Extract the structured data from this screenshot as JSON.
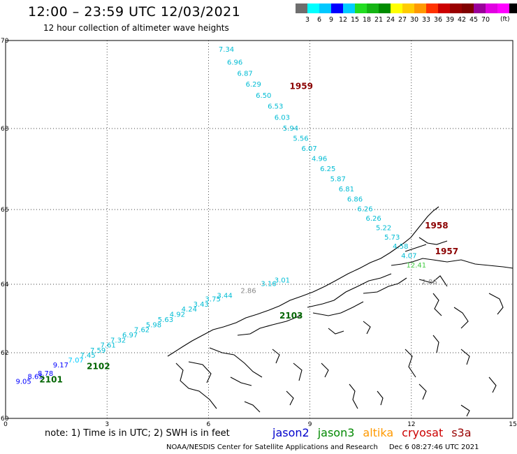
{
  "header": {
    "title": "12:00 – 23:59 UTC 12/03/2021",
    "subtitle": "12 hour collection of altimeter wave heights"
  },
  "legend": {
    "colors": [
      "#6e6e6e",
      "#00ffff",
      "#00c8ff",
      "#0000ff",
      "#00ccff",
      "#22dd22",
      "#14b414",
      "#008c00",
      "#ffff00",
      "#ffcc00",
      "#ff9900",
      "#ff3300",
      "#cc0000",
      "#990000",
      "#800000",
      "#9a009a",
      "#e100e1",
      "#ff00ff",
      "#000000"
    ],
    "ticks": [
      "3",
      "6",
      "9",
      "12",
      "15",
      "18",
      "21",
      "24",
      "27",
      "30",
      "33",
      "36",
      "39",
      "42",
      "45",
      "70"
    ],
    "unit": "(ft)"
  },
  "axes": {
    "x_ticks": [
      "0",
      "3",
      "6",
      "9",
      "12",
      "15"
    ],
    "y_ticks": [
      "60",
      "62",
      "64",
      "66",
      "68",
      "70"
    ],
    "xlim": [
      0,
      15
    ],
    "ylim": [
      60,
      70
    ]
  },
  "passes": [
    {
      "satellite": "cryosat",
      "time": "1959",
      "color": "#8b0000",
      "lon": 8.4,
      "lat": 68.9
    },
    {
      "satellite": "cryosat",
      "time": "1958",
      "color": "#8b0000",
      "lon": 12.4,
      "lat": 65.5
    },
    {
      "satellite": "cryosat",
      "time": "1957",
      "color": "#8b0000",
      "lon": 12.7,
      "lat": 64.8
    },
    {
      "satellite": "jason3",
      "time": "2102",
      "color": "#006400",
      "lon": 2.4,
      "lat": 61.5
    },
    {
      "satellite": "jason3",
      "time": "2101",
      "color": "#006400",
      "lon": 1.0,
      "lat": 61.1
    },
    {
      "satellite": "jason3",
      "time": "2103",
      "color": "#006400",
      "lon": 8.1,
      "lat": 63.0
    }
  ],
  "swh_points": [
    {
      "v": "7.34",
      "lon": 6.3,
      "lat": 69.75,
      "color": "#00bcd4"
    },
    {
      "v": "6.96",
      "lon": 6.55,
      "lat": 69.45,
      "color": "#00bcd4"
    },
    {
      "v": "6.87",
      "lon": 6.85,
      "lat": 69.2,
      "color": "#00bcd4"
    },
    {
      "v": "6.29",
      "lon": 7.1,
      "lat": 68.95,
      "color": "#00bcd4"
    },
    {
      "v": "6.50",
      "lon": 7.4,
      "lat": 68.7,
      "color": "#00bcd4"
    },
    {
      "v": "6.53",
      "lon": 7.75,
      "lat": 68.45,
      "color": "#00bcd4"
    },
    {
      "v": "6.03",
      "lon": 7.95,
      "lat": 68.2,
      "color": "#00bcd4"
    },
    {
      "v": "5.94",
      "lon": 8.2,
      "lat": 67.95,
      "color": "#00bcd4"
    },
    {
      "v": "5.56",
      "lon": 8.5,
      "lat": 67.7,
      "color": "#00bcd4"
    },
    {
      "v": "6.07",
      "lon": 8.75,
      "lat": 67.45,
      "color": "#00bcd4"
    },
    {
      "v": "4.96",
      "lon": 9.05,
      "lat": 67.2,
      "color": "#00bcd4"
    },
    {
      "v": "6.25",
      "lon": 9.3,
      "lat": 66.95,
      "color": "#00bcd4"
    },
    {
      "v": "5.87",
      "lon": 9.6,
      "lat": 66.7,
      "color": "#00bcd4"
    },
    {
      "v": "6.81",
      "lon": 9.85,
      "lat": 66.45,
      "color": "#00bcd4"
    },
    {
      "v": "6.86",
      "lon": 10.1,
      "lat": 66.2,
      "color": "#00bcd4"
    },
    {
      "v": "6.26",
      "lon": 10.4,
      "lat": 65.95,
      "color": "#00bcd4"
    },
    {
      "v": "6.26",
      "lon": 10.65,
      "lat": 65.7,
      "color": "#00bcd4"
    },
    {
      "v": "5.22",
      "lon": 10.95,
      "lat": 65.45,
      "color": "#00bcd4"
    },
    {
      "v": "5.73",
      "lon": 11.2,
      "lat": 65.2,
      "color": "#00bcd4"
    },
    {
      "v": "4.58",
      "lon": 11.45,
      "lat": 64.95,
      "color": "#00bcd4"
    },
    {
      "v": "4.07",
      "lon": 11.7,
      "lat": 64.7,
      "color": "#00bcd4"
    },
    {
      "v": "12.41",
      "lon": 11.85,
      "lat": 64.45,
      "color": "#44cc44"
    },
    {
      "v": "2.86",
      "lon": 12.3,
      "lat": 64.0,
      "color": "#888888"
    },
    {
      "v": "9.05",
      "lon": 0.3,
      "lat": 61.05,
      "color": "#0000ff"
    },
    {
      "v": "8.65",
      "lon": 0.65,
      "lat": 61.2,
      "color": "#0000ff"
    },
    {
      "v": "8.78",
      "lon": 0.95,
      "lat": 61.3,
      "color": "#0000ff"
    },
    {
      "v": "9.17",
      "lon": 1.4,
      "lat": 61.55,
      "color": "#0000ff"
    },
    {
      "v": "7.07",
      "lon": 1.85,
      "lat": 61.7,
      "color": "#00ccff"
    },
    {
      "v": "7.45",
      "lon": 2.2,
      "lat": 61.85,
      "color": "#00bcd4"
    },
    {
      "v": "7.59",
      "lon": 2.5,
      "lat": 62.0,
      "color": "#00bcd4"
    },
    {
      "v": "7.61",
      "lon": 2.8,
      "lat": 62.15,
      "color": "#00bcd4"
    },
    {
      "v": "7.32",
      "lon": 3.1,
      "lat": 62.3,
      "color": "#00bcd4"
    },
    {
      "v": "6.97",
      "lon": 3.45,
      "lat": 62.45,
      "color": "#00bcd4"
    },
    {
      "v": "7.62",
      "lon": 3.8,
      "lat": 62.6,
      "color": "#00bcd4"
    },
    {
      "v": "5.98",
      "lon": 4.15,
      "lat": 62.75,
      "color": "#00bcd4"
    },
    {
      "v": "5.63",
      "lon": 4.5,
      "lat": 62.9,
      "color": "#00bcd4"
    },
    {
      "v": "4.92",
      "lon": 4.85,
      "lat": 63.05,
      "color": "#00bcd4"
    },
    {
      "v": "4.24",
      "lon": 5.2,
      "lat": 63.2,
      "color": "#00bcd4"
    },
    {
      "v": "3.43",
      "lon": 5.55,
      "lat": 63.35,
      "color": "#00bcd4"
    },
    {
      "v": "3.75",
      "lon": 5.9,
      "lat": 63.5,
      "color": "#00bcd4"
    },
    {
      "v": "3.44",
      "lon": 6.25,
      "lat": 63.6,
      "color": "#00bcd4"
    },
    {
      "v": "2.86",
      "lon": 6.95,
      "lat": 63.75,
      "color": "#888888"
    },
    {
      "v": "3.16",
      "lon": 7.55,
      "lat": 63.95,
      "color": "#00bcd4"
    },
    {
      "v": "3.01",
      "lon": 7.95,
      "lat": 64.05,
      "color": "#00bcd4"
    }
  ],
  "footer": {
    "note": "note: 1) Time is in UTC; 2) SWH is in feet",
    "satellites": [
      {
        "name": "jason2",
        "color": "#0000cc"
      },
      {
        "name": "jason3",
        "color": "#008800"
      },
      {
        "name": "altika",
        "color": "#ff9900"
      },
      {
        "name": "cryosat",
        "color": "#cc0000"
      },
      {
        "name": "s3a",
        "color": "#990000"
      }
    ],
    "credit": "NOAA/NESDIS Center for Satellite Applications and Research",
    "timestamp": "Dec  6 08:27:46 UTC 2021"
  }
}
